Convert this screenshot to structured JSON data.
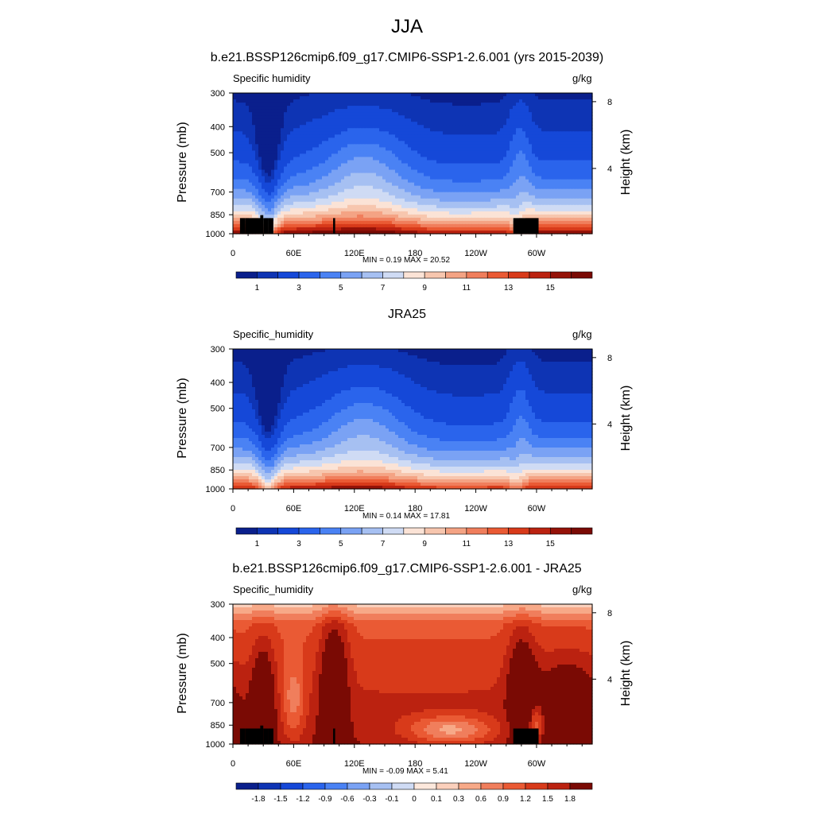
{
  "page": {
    "title": "JJA"
  },
  "panels": [
    {
      "title": "b.e21.BSSP126cmip6.f09_g17.CMIP6-SSP1-2.6.001 (yrs 2015-2039)",
      "left_string": "Specific humidity",
      "right_string": "g/kg",
      "ylabel": "Pressure (mb)",
      "ylabel_right": "Height (km)",
      "stats": "MIN =   0.19  MAX =  20.52"
    },
    {
      "title": "JRA25",
      "left_string": "Specific_humidity",
      "right_string": "g/kg",
      "ylabel": "Pressure (mb)",
      "ylabel_right": "Height (km)",
      "stats": "MIN =   0.14  MAX =  17.81"
    },
    {
      "title": "b.e21.BSSP126cmip6.f09_g17.CMIP6-SSP1-2.6.001 - JRA25",
      "left_string": "Specific_humidity",
      "right_string": "g/kg",
      "ylabel": "Pressure (mb)",
      "ylabel_right": "Height (km)",
      "stats": "MIN =  -0.09  MAX =   5.41"
    }
  ],
  "chart_data": [
    {
      "type": "heatmap",
      "title": "b.e21.BSSP126cmip6.f09_g17.CMIP6-SSP1-2.6.001 (yrs 2015-2039)",
      "variable": "Specific humidity",
      "units": "g/kg",
      "xlabel": "",
      "ylabel": "Pressure (mb)",
      "ylabel_right": "Height (km)",
      "x_ticks": [
        "0",
        "60E",
        "120E",
        "180",
        "120W",
        "60W"
      ],
      "x_tick_values": [
        0,
        60,
        120,
        180,
        240,
        300
      ],
      "xlim": [
        0,
        355
      ],
      "y_ticks": [
        300,
        400,
        500,
        700,
        850,
        1000
      ],
      "ylim": [
        1000,
        300
      ],
      "y_scale": "log",
      "right_ticks": [
        4,
        8
      ],
      "levels": [
        0.5,
        1,
        2,
        3,
        4,
        5,
        6,
        7,
        8,
        9,
        10,
        11,
        12,
        13,
        14,
        15
      ],
      "colorbar_labels": [
        "1",
        "3",
        "5",
        "7",
        "9",
        "11",
        "13",
        "15"
      ],
      "colors": [
        "#0a1f8c",
        "#0e34b4",
        "#1548d8",
        "#2a64ec",
        "#4a82f4",
        "#7aa2f4",
        "#a6c0f2",
        "#cfdbf4",
        "#fbe3d6",
        "#f7c6ae",
        "#f4a384",
        "#f07e5c",
        "#ea5a34",
        "#d83a1a",
        "#bb2210",
        "#951208",
        "#7a0a04"
      ],
      "min": 0.19,
      "max": 20.52
    },
    {
      "type": "heatmap",
      "title": "JRA25",
      "variable": "Specific_humidity",
      "units": "g/kg",
      "xlabel": "",
      "ylabel": "Pressure (mb)",
      "ylabel_right": "Height (km)",
      "x_ticks": [
        "0",
        "60E",
        "120E",
        "180",
        "120W",
        "60W"
      ],
      "x_tick_values": [
        0,
        60,
        120,
        180,
        240,
        300
      ],
      "xlim": [
        0,
        355
      ],
      "y_ticks": [
        300,
        400,
        500,
        700,
        850,
        1000
      ],
      "ylim": [
        1000,
        300
      ],
      "y_scale": "log",
      "right_ticks": [
        4,
        8
      ],
      "levels": [
        0.5,
        1,
        2,
        3,
        4,
        5,
        6,
        7,
        8,
        9,
        10,
        11,
        12,
        13,
        14,
        15
      ],
      "colorbar_labels": [
        "1",
        "3",
        "5",
        "7",
        "9",
        "11",
        "13",
        "15"
      ],
      "colors": [
        "#0a1f8c",
        "#0e34b4",
        "#1548d8",
        "#2a64ec",
        "#4a82f4",
        "#7aa2f4",
        "#a6c0f2",
        "#cfdbf4",
        "#fbe3d6",
        "#f7c6ae",
        "#f4a384",
        "#f07e5c",
        "#ea5a34",
        "#d83a1a",
        "#bb2210",
        "#951208",
        "#7a0a04"
      ],
      "min": 0.14,
      "max": 17.81
    },
    {
      "type": "heatmap",
      "title": "b.e21.BSSP126cmip6.f09_g17.CMIP6-SSP1-2.6.001 - JRA25",
      "variable": "Specific_humidity",
      "units": "g/kg",
      "xlabel": "",
      "ylabel": "Pressure (mb)",
      "ylabel_right": "Height (km)",
      "x_ticks": [
        "0",
        "60E",
        "120E",
        "180",
        "120W",
        "60W"
      ],
      "x_tick_values": [
        0,
        60,
        120,
        180,
        240,
        300
      ],
      "xlim": [
        0,
        355
      ],
      "y_ticks": [
        300,
        400,
        500,
        700,
        850,
        1000
      ],
      "ylim": [
        1000,
        300
      ],
      "y_scale": "log",
      "right_ticks": [
        4,
        8
      ],
      "levels": [
        -1.8,
        -1.5,
        -1.2,
        -0.9,
        -0.6,
        -0.3,
        -0.1,
        0,
        0.1,
        0.3,
        0.6,
        0.9,
        1.2,
        1.5,
        1.8
      ],
      "colorbar_labels": [
        "-1.8",
        "-1.5",
        "-1.2",
        "-0.9",
        "-0.6",
        "-0.3",
        "-0.1",
        "0",
        "0.1",
        "0.3",
        "0.6",
        "0.9",
        "1.2",
        "1.5",
        "1.8"
      ],
      "colors": [
        "#0a1f8c",
        "#0e34b4",
        "#1548d8",
        "#2a64ec",
        "#4a82f4",
        "#7aa2f4",
        "#a6c0f2",
        "#cfdbf4",
        "#fde8dc",
        "#fbd0bc",
        "#f7a988",
        "#f07e5c",
        "#ea5a34",
        "#d83a1a",
        "#bb2210",
        "#7a0a04"
      ],
      "min": -0.09,
      "max": 5.41
    }
  ]
}
